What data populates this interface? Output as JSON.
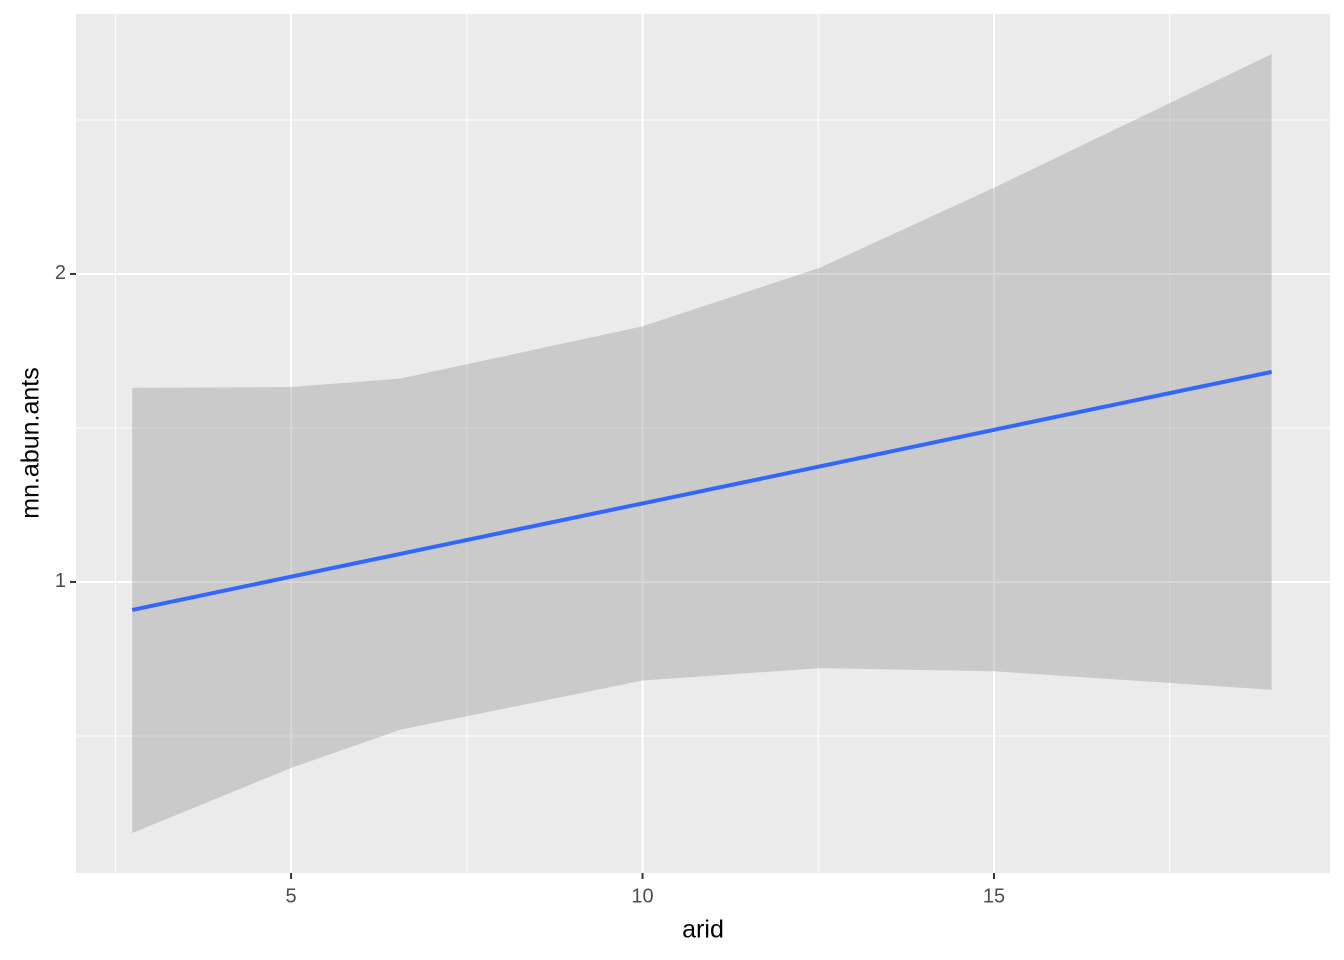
{
  "chart_data": {
    "type": "smooth",
    "x_label": "arid",
    "y_label": "mn.abun.ants",
    "x": [
      2.74,
      5,
      6.55,
      10,
      12.52,
      15,
      18.95
    ],
    "values": [
      0.909,
      1.017,
      1.091,
      1.255,
      1.375,
      1.494,
      1.682
    ],
    "lower": [
      0.185,
      0.396,
      0.52,
      0.68,
      0.72,
      0.71,
      0.65
    ],
    "upper": [
      1.63,
      1.633,
      1.66,
      1.83,
      2.02,
      2.28,
      2.714
    ],
    "color": "#3366ff",
    "band_color": "#999999",
    "xlim": [
      1.94,
      19.78
    ],
    "ylim": [
      0.055,
      2.844
    ],
    "xticks": [
      5,
      10,
      15
    ],
    "yticks": [
      1,
      2
    ],
    "xminor": [
      2.5,
      7.5,
      12.5,
      17.5
    ],
    "yminor": [
      0.5,
      1.5,
      2.5
    ],
    "grid": true,
    "panel_color": "#ebebeb"
  }
}
